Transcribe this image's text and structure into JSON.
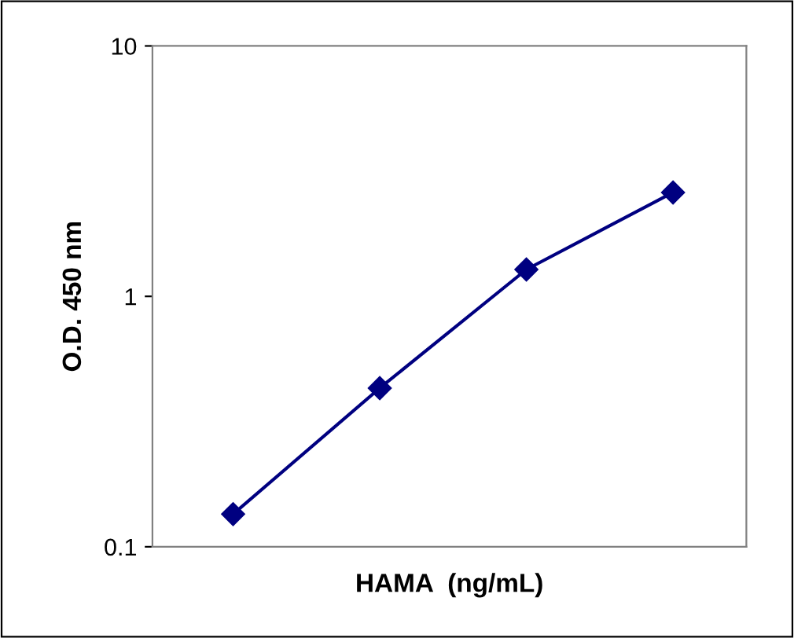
{
  "chart_data": {
    "type": "line",
    "xlabel": "HAMA  (ng/mL)",
    "ylabel": "O.D. 450 nm",
    "categories": [
      null,
      null,
      null,
      null
    ],
    "series": [
      {
        "color": "#000080",
        "values": [
          0.135,
          0.43,
          1.28,
          2.6
        ]
      }
    ],
    "log": true,
    "ylim": [
      0.1,
      10
    ],
    "yticks": [
      0.1,
      1,
      10
    ],
    "marker": "diamond",
    "line_style": "solid",
    "grid": false,
    "tick_labels": "y"
  }
}
